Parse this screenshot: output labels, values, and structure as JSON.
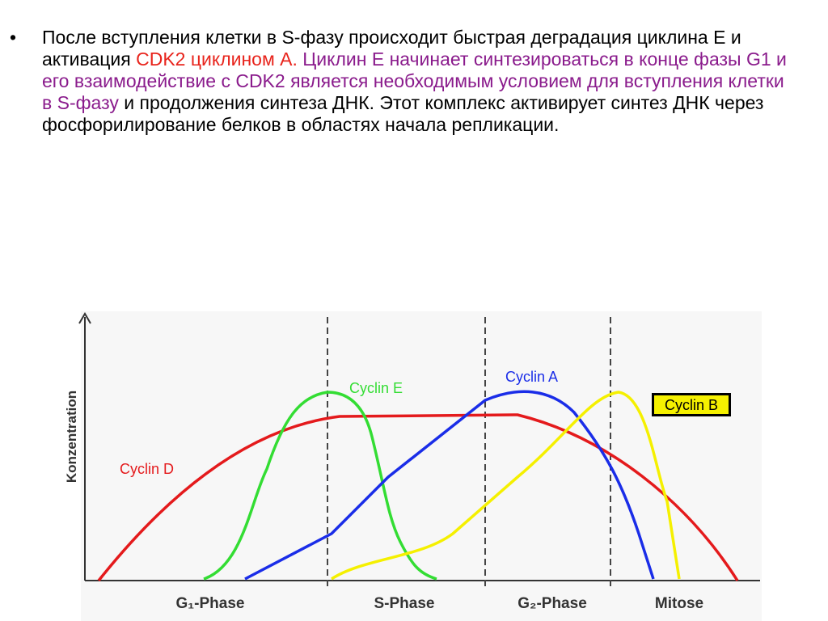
{
  "bullet": "•",
  "paragraph": [
    "После вступления клетки в S-фазу происходит быстрая деградация циклина Е и активация ",
    "CDK2 циклином А.",
    " Циклин Е начинает синтезироваться в конце фазы G1 и его взаимодействие с CDK2 является необходимым условием для вступления клетки в S-фазу",
    " и продолжения синтеза ДНК. Этот комплекс активирует синтез ДНК через фосфорилирование белков в областях начала репликации."
  ],
  "figure": {
    "y_axis_label": "Konzentration",
    "curves": {
      "cyclin_d": "Cyclin D",
      "cyclin_e": "Cyclin E",
      "cyclin_a": "Cyclin A",
      "cyclin_b": "Cyclin B"
    },
    "phases": [
      "G₁-Phase",
      "S-Phase",
      "G₂-Phase",
      "Mitose"
    ]
  }
}
